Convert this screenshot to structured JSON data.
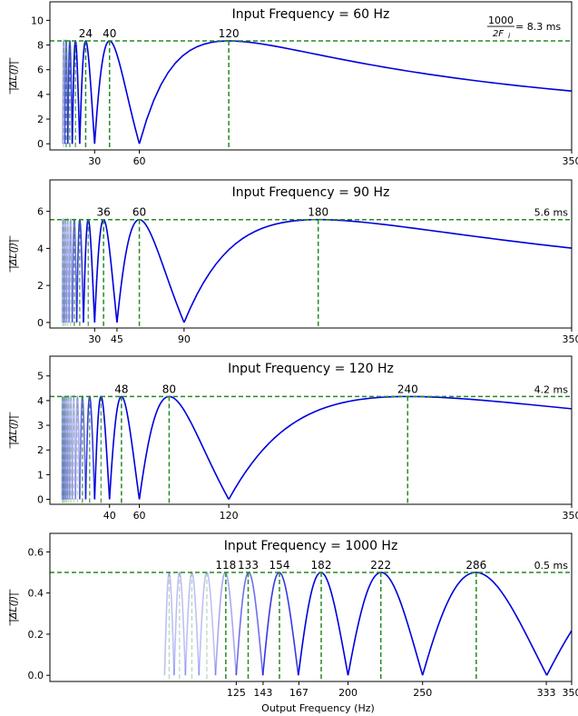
{
  "figure": {
    "xlabel": "Output Frequency (Hz)",
    "ylabel": "|ΔL(j)|",
    "colors": {
      "curve": "#0000dd",
      "reference": "#228b22"
    }
  },
  "chart_data": [
    {
      "type": "line",
      "title": "Input Frequency = 60 Hz",
      "input_frequency_hz": 60,
      "reference_value_ms": 8.3,
      "reference_label": {
        "fraction_num": "1000",
        "fraction_den": "2F",
        "fraction_sub": "i",
        "suffix": " = 8.3 ms"
      },
      "xlim": [
        0,
        350
      ],
      "ylim": [
        -0.5,
        11.5
      ],
      "yticks": [
        0,
        2,
        4,
        6,
        8,
        10
      ],
      "xticks": [
        30,
        60,
        350
      ],
      "peaks": [
        24,
        40,
        120
      ],
      "grid": false
    },
    {
      "type": "line",
      "title": "Input Frequency = 90 Hz",
      "input_frequency_hz": 90,
      "reference_value_ms": 5.6,
      "reference_label": {
        "text": "5.6 ms"
      },
      "xlim": [
        0,
        350
      ],
      "ylim": [
        -0.3,
        7.7
      ],
      "yticks": [
        0,
        2,
        4,
        6
      ],
      "xticks": [
        30,
        45,
        90,
        350
      ],
      "peaks": [
        36,
        60,
        180
      ],
      "grid": false
    },
    {
      "type": "line",
      "title": "Input Frequency = 120 Hz",
      "input_frequency_hz": 120,
      "reference_value_ms": 4.2,
      "reference_label": {
        "text": "4.2 ms"
      },
      "xlim": [
        0,
        350
      ],
      "ylim": [
        -0.2,
        5.8
      ],
      "yticks": [
        0,
        1,
        2,
        3,
        4,
        5
      ],
      "xticks": [
        40,
        60,
        120,
        350
      ],
      "peaks": [
        48,
        80,
        240
      ],
      "grid": false
    },
    {
      "type": "line",
      "title": "Input Frequency = 1000 Hz",
      "input_frequency_hz": 1000,
      "reference_value_ms": 0.5,
      "reference_label": {
        "text": "0.5 ms"
      },
      "xlim": [
        0,
        350
      ],
      "ylim": [
        -0.03,
        0.69
      ],
      "yticks": [
        0.0,
        0.2,
        0.4,
        0.6
      ],
      "xticks": [
        125,
        143,
        167,
        200,
        250,
        333,
        350
      ],
      "peaks": [
        118,
        133,
        154,
        182,
        222,
        286
      ],
      "grid": false
    }
  ]
}
